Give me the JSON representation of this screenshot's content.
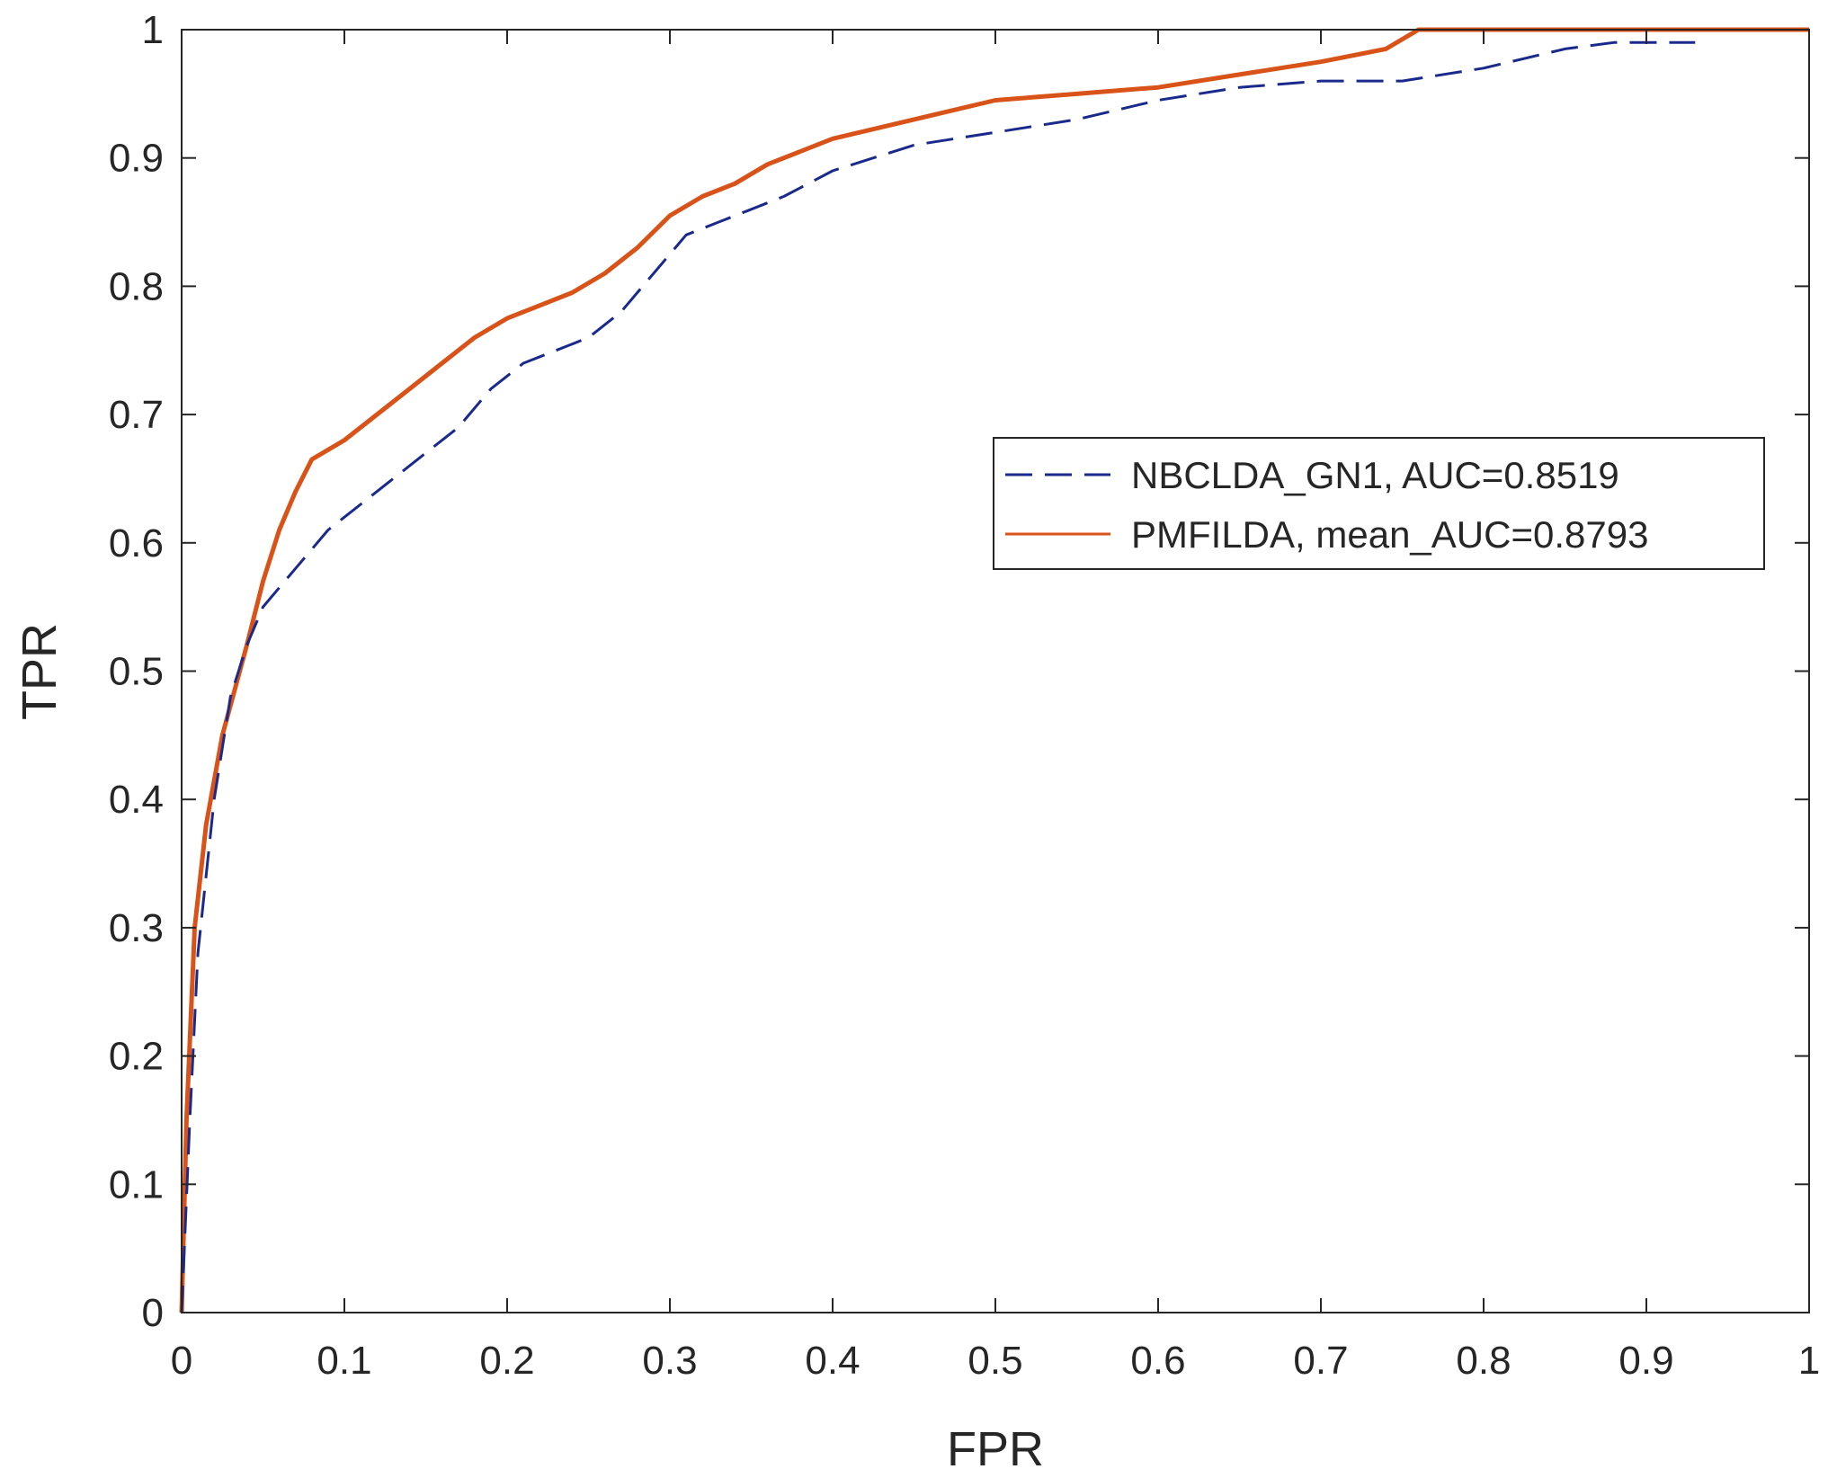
{
  "chart_data": {
    "type": "line",
    "title": "",
    "xlabel": "FPR",
    "ylabel": "TPR",
    "xlim": [
      0,
      1
    ],
    "ylim": [
      0,
      1
    ],
    "xticks": [
      "0",
      "0.1",
      "0.2",
      "0.3",
      "0.4",
      "0.5",
      "0.6",
      "0.7",
      "0.8",
      "0.9",
      "1"
    ],
    "yticks": [
      "0",
      "0.1",
      "0.2",
      "0.3",
      "0.4",
      "0.5",
      "0.6",
      "0.7",
      "0.8",
      "0.9",
      "1"
    ],
    "grid": false,
    "legend_position": "right-center",
    "series": [
      {
        "name": "NBCLDA_GN1, AUC=0.8519",
        "style": "dashed",
        "color": "#1a2a8c",
        "x": [
          0,
          0.005,
          0.01,
          0.02,
          0.03,
          0.04,
          0.05,
          0.07,
          0.09,
          0.11,
          0.13,
          0.15,
          0.17,
          0.19,
          0.21,
          0.23,
          0.25,
          0.27,
          0.29,
          0.31,
          0.33,
          0.35,
          0.37,
          0.4,
          0.45,
          0.5,
          0.55,
          0.6,
          0.65,
          0.7,
          0.75,
          0.8,
          0.85,
          0.88,
          0.93
        ],
        "y": [
          0,
          0.15,
          0.28,
          0.4,
          0.48,
          0.52,
          0.55,
          0.58,
          0.61,
          0.63,
          0.65,
          0.67,
          0.69,
          0.72,
          0.74,
          0.75,
          0.76,
          0.78,
          0.81,
          0.84,
          0.85,
          0.86,
          0.87,
          0.89,
          0.91,
          0.92,
          0.93,
          0.945,
          0.955,
          0.96,
          0.96,
          0.97,
          0.985,
          0.99,
          0.99
        ]
      },
      {
        "name": "PMFILDA, mean_AUC=0.8793",
        "style": "solid",
        "color": "#d95319",
        "x": [
          0,
          0.003,
          0.008,
          0.015,
          0.025,
          0.04,
          0.05,
          0.06,
          0.07,
          0.08,
          0.1,
          0.12,
          0.14,
          0.16,
          0.18,
          0.2,
          0.22,
          0.24,
          0.26,
          0.28,
          0.3,
          0.32,
          0.34,
          0.36,
          0.38,
          0.4,
          0.45,
          0.5,
          0.55,
          0.6,
          0.65,
          0.7,
          0.74,
          0.76,
          0.8,
          1.0
        ],
        "y": [
          0,
          0.15,
          0.3,
          0.38,
          0.45,
          0.52,
          0.57,
          0.61,
          0.64,
          0.665,
          0.68,
          0.7,
          0.72,
          0.74,
          0.76,
          0.775,
          0.785,
          0.795,
          0.81,
          0.83,
          0.855,
          0.87,
          0.88,
          0.895,
          0.905,
          0.915,
          0.93,
          0.945,
          0.95,
          0.955,
          0.965,
          0.975,
          0.985,
          1.0,
          1.0,
          1.0
        ]
      }
    ]
  }
}
